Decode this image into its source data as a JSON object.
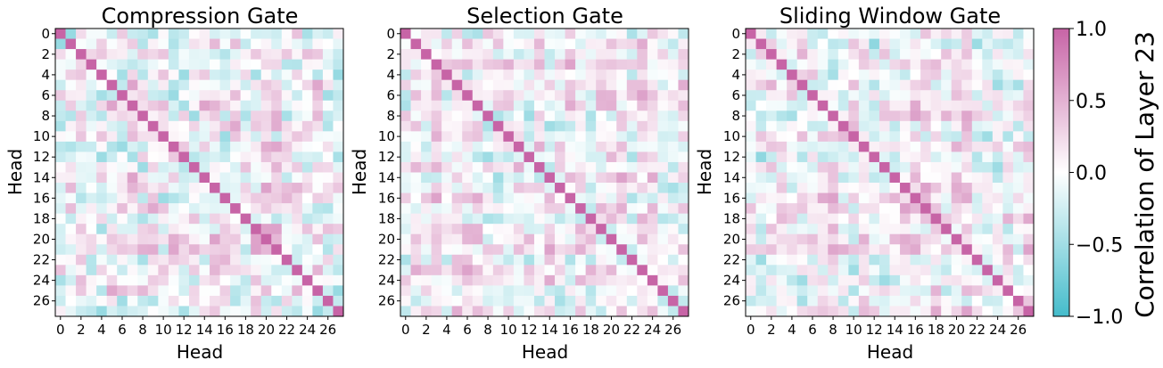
{
  "chart_data": {
    "type": "heatmap",
    "n_heads": 28,
    "panels": [
      {
        "title": "Compression Gate",
        "xlabel": "Head",
        "ylabel": "Head",
        "seed": 11,
        "off_diagonal_scale": 0.42
      },
      {
        "title": "Selection Gate",
        "xlabel": "Head",
        "ylabel": "Head",
        "seed": 29,
        "off_diagonal_scale": 0.36
      },
      {
        "title": "Sliding Window Gate",
        "xlabel": "Head",
        "ylabel": "Head",
        "seed": 47,
        "off_diagonal_scale": 0.36
      }
    ],
    "diagonal_value": 1.0,
    "x_tick_labels": [
      "0",
      "2",
      "4",
      "6",
      "8",
      "10",
      "12",
      "14",
      "16",
      "18",
      "20",
      "22",
      "24",
      "26"
    ],
    "y_tick_labels": [
      "0",
      "2",
      "4",
      "6",
      "8",
      "10",
      "12",
      "14",
      "16",
      "18",
      "20",
      "22",
      "24",
      "26"
    ],
    "colorbar": {
      "label": "Correlation of Layer 23",
      "range": [
        -1.0,
        1.0
      ],
      "tick_labels": [
        "1.0",
        "0.5",
        "0.0",
        "−0.5",
        "−1.0"
      ],
      "tick_values": [
        1.0,
        0.5,
        0.0,
        -0.5,
        -1.0
      ],
      "color_low": "#44bccb",
      "color_mid": "#ffffff",
      "color_high": "#c764a6"
    }
  }
}
